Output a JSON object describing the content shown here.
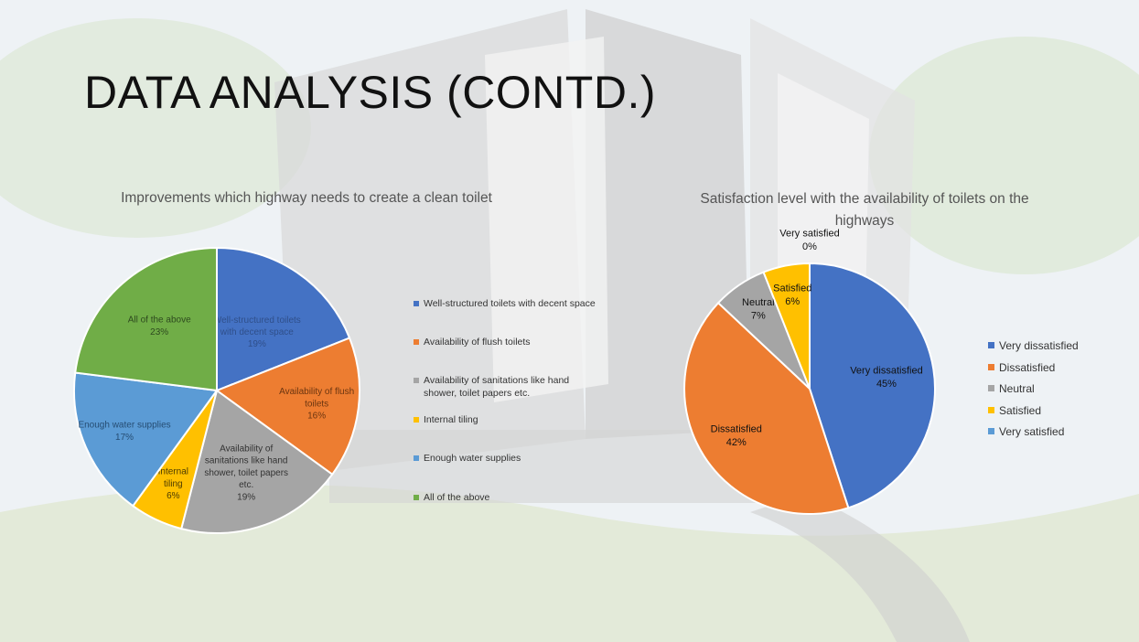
{
  "slide": {
    "title": "DATA ANALYSIS (CONTD.)"
  },
  "chart_data": [
    {
      "type": "pie",
      "title": "Improvements which highway needs to create a clean toilet",
      "legend_position": "right",
      "categories": [
        "Well-structured toilets with decent space",
        "Availability of flush toilets",
        "Availability of sanitations like hand shower, toilet papers etc.",
        "Internal tiling",
        "Enough water supplies",
        "All of the above"
      ],
      "values": [
        19,
        16,
        19,
        6,
        17,
        23
      ],
      "value_labels": [
        "19%",
        "16%",
        "19%",
        "6%",
        "17%",
        "23%"
      ],
      "colors": [
        "#4472c4",
        "#ed7d31",
        "#a5a5a5",
        "#ffc000",
        "#5b9bd5",
        "#70ad47"
      ]
    },
    {
      "type": "pie",
      "title": "Satisfaction level with the availability of toilets on the highways",
      "legend_position": "right",
      "categories": [
        "Very dissatisfied",
        "Dissatisfied",
        "Neutral",
        "Satisfied",
        "Very satisfied"
      ],
      "values": [
        45,
        42,
        7,
        6,
        0
      ],
      "value_labels": [
        "45%",
        "42%",
        "7%",
        "6%",
        "0%"
      ],
      "colors": [
        "#4472c4",
        "#ed7d31",
        "#a5a5a5",
        "#ffc000",
        "#5b9bd5"
      ]
    }
  ]
}
